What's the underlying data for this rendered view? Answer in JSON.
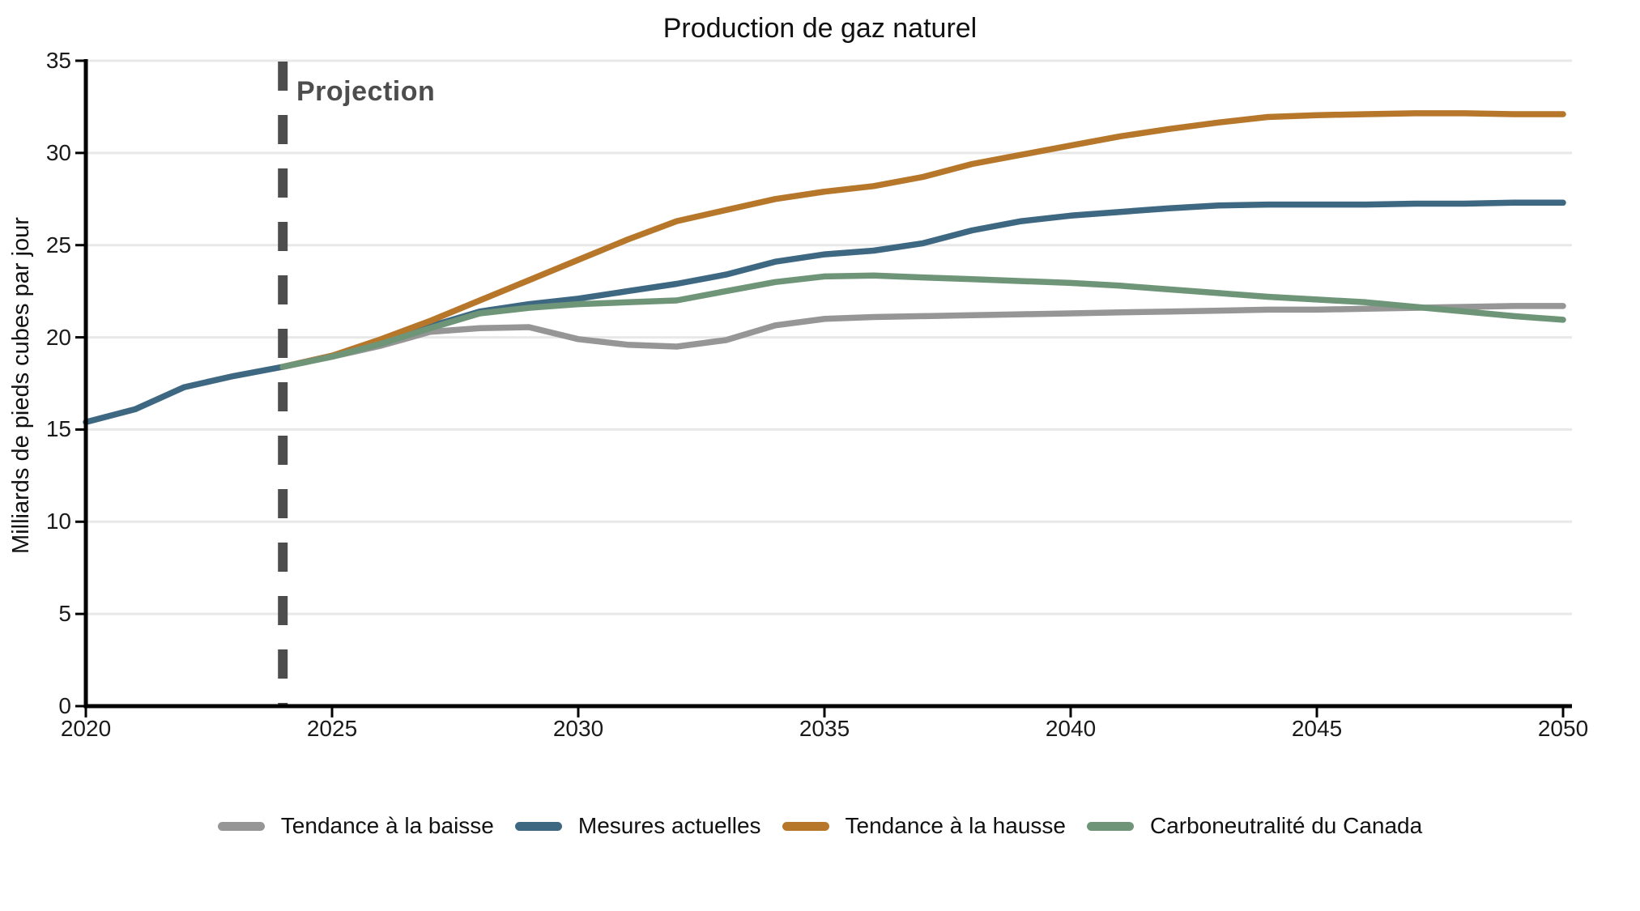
{
  "chart_data": {
    "type": "line",
    "title": "Production de gaz naturel",
    "xlabel": "",
    "ylabel": "Milliards de pieds cubes par jour",
    "projection_label": "Projection",
    "projection_year": 2024,
    "xlim": [
      2020,
      2050
    ],
    "ylim": [
      0,
      35
    ],
    "x_ticks": [
      "2020",
      "2025",
      "2030",
      "2035",
      "2040",
      "2045",
      "2050"
    ],
    "y_ticks": [
      "0",
      "5",
      "10",
      "15",
      "20",
      "25",
      "30",
      "35"
    ],
    "grid": "horizontal-only",
    "legend_position": "bottom-center",
    "colors": {
      "axis": "#000000",
      "gridline": "#e8e8e8",
      "projection_line": "#4d4d4d",
      "title_text": "#111111",
      "tick_text": "#1a1a1a"
    },
    "series": [
      {
        "name": "Tendance à la baisse",
        "color": "#969696",
        "start_year": 2024,
        "values": [
          18.4,
          18.95,
          19.55,
          20.3,
          20.5,
          20.55,
          19.9,
          19.6,
          19.5,
          19.85,
          20.65,
          21.0,
          21.1,
          21.15,
          21.2,
          21.25,
          21.3,
          21.35,
          21.4,
          21.45,
          21.5,
          21.5,
          21.55,
          21.6,
          21.65,
          21.7,
          21.7
        ]
      },
      {
        "name": "Mesures actuelles",
        "color": "#3e6882",
        "start_year": 2020,
        "values": [
          15.4,
          16.1,
          17.3,
          17.9,
          18.4,
          19.0,
          19.7,
          20.6,
          21.4,
          21.8,
          22.1,
          22.5,
          22.9,
          23.4,
          24.1,
          24.5,
          24.7,
          25.1,
          25.8,
          26.3,
          26.6,
          26.8,
          27.0,
          27.15,
          27.2,
          27.2,
          27.2,
          27.25,
          27.25,
          27.3,
          27.3
        ]
      },
      {
        "name": "Tendance à la hausse",
        "color": "#b7772a",
        "start_year": 2024,
        "values": [
          18.4,
          19.0,
          19.9,
          20.9,
          22.0,
          23.1,
          24.2,
          25.3,
          26.3,
          26.9,
          27.5,
          27.9,
          28.2,
          28.7,
          29.4,
          29.9,
          30.4,
          30.9,
          31.3,
          31.65,
          31.95,
          32.05,
          32.1,
          32.15,
          32.15,
          32.1,
          32.1
        ]
      },
      {
        "name": "Carboneutralité du Canada",
        "color": "#6f9578",
        "start_year": 2024,
        "values": [
          18.4,
          18.95,
          19.65,
          20.5,
          21.3,
          21.6,
          21.8,
          21.9,
          22.0,
          22.5,
          23.0,
          23.3,
          23.35,
          23.25,
          23.15,
          23.05,
          22.95,
          22.8,
          22.6,
          22.4,
          22.2,
          22.05,
          21.9,
          21.65,
          21.4,
          21.15,
          20.95
        ]
      }
    ]
  }
}
